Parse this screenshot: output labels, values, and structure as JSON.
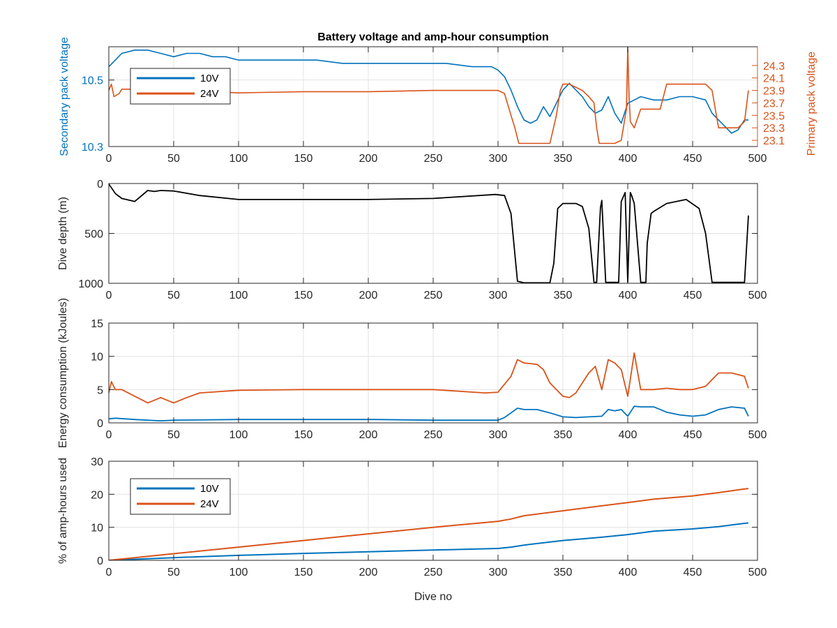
{
  "colors": {
    "s10v": "#0072BD",
    "s24v": "#D95319",
    "depth": "#000000",
    "grid": "#E3E3E3",
    "axis": "#262626"
  },
  "chart_data": [
    {
      "id": "voltage",
      "type": "line",
      "title": "Battery voltage and amp-hour consumption",
      "xlabel": "",
      "ylabel": "Secondary pack voltage",
      "ylabel_right": "Primary pack voltage",
      "xlim": [
        0,
        500
      ],
      "ylim": [
        10.3,
        10.6
      ],
      "ylim_right": [
        23.0,
        24.6
      ],
      "xticks": [
        0,
        50,
        100,
        150,
        200,
        250,
        300,
        350,
        400,
        450,
        500
      ],
      "yticks": [
        10.3,
        10.5
      ],
      "yticks_right": [
        23.1,
        23.3,
        23.5,
        23.7,
        23.9,
        24.1,
        24.3
      ],
      "grid": true,
      "legend": {
        "position": "top-left",
        "entries": [
          "10V",
          "24V"
        ]
      },
      "series": [
        {
          "name": "10V",
          "axis": "left",
          "x": [
            0,
            5,
            10,
            20,
            30,
            40,
            50,
            60,
            70,
            80,
            90,
            100,
            120,
            140,
            160,
            180,
            200,
            220,
            240,
            260,
            280,
            295,
            300,
            305,
            310,
            315,
            320,
            325,
            330,
            335,
            340,
            345,
            350,
            355,
            360,
            365,
            370,
            375,
            380,
            385,
            390,
            395,
            400,
            405,
            410,
            420,
            430,
            440,
            450,
            460,
            465,
            470,
            475,
            480,
            485,
            490,
            493
          ],
          "y": [
            10.54,
            10.56,
            10.58,
            10.59,
            10.59,
            10.58,
            10.57,
            10.58,
            10.58,
            10.57,
            10.57,
            10.56,
            10.56,
            10.56,
            10.56,
            10.55,
            10.55,
            10.55,
            10.55,
            10.55,
            10.54,
            10.54,
            10.53,
            10.51,
            10.47,
            10.42,
            10.38,
            10.37,
            10.38,
            10.42,
            10.39,
            10.43,
            10.47,
            10.49,
            10.47,
            10.45,
            10.42,
            10.4,
            10.41,
            10.45,
            10.4,
            10.37,
            10.43,
            10.44,
            10.45,
            10.44,
            10.44,
            10.45,
            10.45,
            10.44,
            10.4,
            10.38,
            10.36,
            10.34,
            10.35,
            10.38,
            10.38
          ]
        },
        {
          "name": "24V",
          "axis": "right",
          "x": [
            0,
            2,
            4,
            8,
            10,
            20,
            30,
            40,
            60,
            80,
            100,
            150,
            200,
            250,
            280,
            290,
            300,
            305,
            310,
            313,
            316,
            320,
            330,
            335,
            340,
            345,
            348,
            350,
            355,
            360,
            365,
            370,
            374,
            376,
            378,
            380,
            385,
            390,
            395,
            399,
            400,
            401,
            402,
            405,
            410,
            415,
            420,
            425,
            430,
            440,
            450,
            460,
            465,
            470,
            475,
            480,
            485,
            490,
            493
          ],
          "y": [
            23.9,
            24.0,
            23.8,
            23.85,
            23.92,
            23.92,
            23.9,
            23.88,
            23.88,
            23.88,
            23.86,
            23.88,
            23.88,
            23.9,
            23.9,
            23.9,
            23.9,
            23.85,
            23.5,
            23.3,
            23.05,
            23.05,
            23.05,
            23.05,
            23.05,
            23.5,
            23.9,
            24.0,
            24.0,
            23.95,
            23.9,
            23.8,
            23.7,
            23.3,
            23.05,
            23.05,
            23.05,
            23.05,
            23.1,
            23.6,
            24.6,
            23.8,
            23.4,
            23.3,
            23.6,
            23.6,
            23.6,
            23.6,
            24.0,
            24.0,
            24.0,
            24.0,
            23.9,
            23.3,
            23.3,
            23.3,
            23.3,
            23.4,
            23.9
          ]
        }
      ]
    },
    {
      "id": "depth",
      "type": "line",
      "title": "",
      "xlabel": "",
      "ylabel": "Dive depth (m)",
      "xlim": [
        0,
        500
      ],
      "ylim": [
        0,
        1000
      ],
      "y_reversed": true,
      "xticks": [
        0,
        50,
        100,
        150,
        200,
        250,
        300,
        350,
        400,
        450,
        500
      ],
      "yticks": [
        0,
        500,
        1000
      ],
      "grid": true,
      "series": [
        {
          "name": "",
          "x": [
            0,
            5,
            10,
            20,
            30,
            35,
            40,
            50,
            70,
            100,
            150,
            200,
            250,
            298,
            305,
            310,
            315,
            320,
            340,
            343,
            346,
            350,
            360,
            365,
            370,
            374,
            376,
            379,
            380,
            383,
            384,
            393,
            395,
            398,
            400,
            402,
            403,
            405,
            410,
            414,
            415,
            418,
            420,
            430,
            445,
            455,
            460,
            465,
            470,
            490,
            493
          ],
          "y": [
            5,
            100,
            150,
            180,
            70,
            80,
            70,
            75,
            120,
            160,
            160,
            160,
            150,
            110,
            120,
            300,
            980,
            995,
            995,
            800,
            250,
            200,
            200,
            230,
            450,
            990,
            990,
            240,
            170,
            990,
            990,
            990,
            180,
            90,
            990,
            90,
            120,
            200,
            990,
            990,
            600,
            300,
            280,
            200,
            160,
            250,
            500,
            990,
            990,
            990,
            320
          ]
        }
      ]
    },
    {
      "id": "energy",
      "type": "line",
      "title": "",
      "xlabel": "",
      "ylabel": "Energy consumption (kJoules)",
      "xlim": [
        0,
        500
      ],
      "ylim": [
        0,
        15
      ],
      "xticks": [
        0,
        50,
        100,
        150,
        200,
        250,
        300,
        350,
        400,
        450,
        500
      ],
      "yticks": [
        0,
        5,
        10,
        15
      ],
      "grid": true,
      "series": [
        {
          "name": "24V",
          "x": [
            0,
            2,
            5,
            10,
            20,
            25,
            30,
            40,
            50,
            60,
            70,
            100,
            150,
            200,
            205,
            250,
            290,
            300,
            310,
            315,
            320,
            330,
            335,
            340,
            350,
            355,
            360,
            370,
            375,
            380,
            385,
            390,
            395,
            400,
            405,
            410,
            420,
            430,
            440,
            450,
            460,
            465,
            470,
            480,
            490,
            493
          ],
          "y": [
            4.5,
            6.2,
            5.0,
            5.0,
            4.0,
            3.5,
            3.0,
            3.8,
            3.0,
            3.8,
            4.5,
            4.9,
            5.0,
            5.0,
            5.0,
            5.0,
            4.5,
            4.6,
            7.0,
            9.5,
            9.0,
            8.8,
            8.0,
            6.0,
            4.0,
            3.8,
            4.5,
            7.5,
            8.5,
            5.0,
            9.5,
            9.0,
            8.0,
            4.0,
            10.5,
            5.0,
            5.0,
            5.2,
            5.0,
            5.0,
            5.5,
            6.5,
            7.5,
            7.5,
            7.0,
            5.2
          ]
        },
        {
          "name": "10V",
          "x": [
            0,
            5,
            20,
            40,
            50,
            100,
            150,
            200,
            205,
            250,
            300,
            305,
            310,
            315,
            320,
            330,
            340,
            350,
            360,
            370,
            380,
            385,
            390,
            395,
            400,
            405,
            410,
            420,
            430,
            440,
            450,
            460,
            470,
            480,
            490,
            493
          ],
          "y": [
            0.6,
            0.7,
            0.5,
            0.3,
            0.4,
            0.5,
            0.5,
            0.5,
            0.5,
            0.4,
            0.4,
            0.8,
            1.5,
            2.2,
            2.0,
            2.0,
            1.5,
            0.9,
            0.8,
            0.9,
            1.0,
            2.0,
            1.8,
            2.0,
            1.0,
            2.5,
            2.4,
            2.4,
            1.6,
            1.2,
            1.0,
            1.2,
            2.0,
            2.4,
            2.2,
            1.0
          ]
        }
      ]
    },
    {
      "id": "amphours",
      "type": "line",
      "title": "",
      "xlabel": "Dive no",
      "ylabel": "% of amp-hours used",
      "xlim": [
        0,
        500
      ],
      "ylim": [
        0,
        30
      ],
      "xticks": [
        0,
        50,
        100,
        150,
        200,
        250,
        300,
        350,
        400,
        450,
        500
      ],
      "yticks": [
        0,
        10,
        20,
        30
      ],
      "grid": true,
      "legend": {
        "position": "top-left",
        "entries": [
          "10V",
          "24V"
        ]
      },
      "series": [
        {
          "name": "10V",
          "x": [
            0,
            50,
            100,
            150,
            200,
            250,
            300,
            310,
            320,
            350,
            380,
            400,
            420,
            450,
            470,
            490,
            493
          ],
          "y": [
            0,
            0.8,
            1.5,
            2.1,
            2.6,
            3.1,
            3.6,
            4.0,
            4.6,
            6.0,
            7.0,
            7.8,
            8.8,
            9.5,
            10.2,
            11.2,
            11.3
          ]
        },
        {
          "name": "24V",
          "x": [
            0,
            50,
            100,
            150,
            200,
            250,
            300,
            310,
            320,
            350,
            380,
            400,
            420,
            450,
            470,
            490,
            493
          ],
          "y": [
            0,
            2.0,
            4.0,
            6.0,
            8.0,
            10.0,
            11.8,
            12.5,
            13.5,
            15.0,
            16.5,
            17.5,
            18.5,
            19.5,
            20.5,
            21.6,
            21.7
          ]
        }
      ]
    }
  ]
}
